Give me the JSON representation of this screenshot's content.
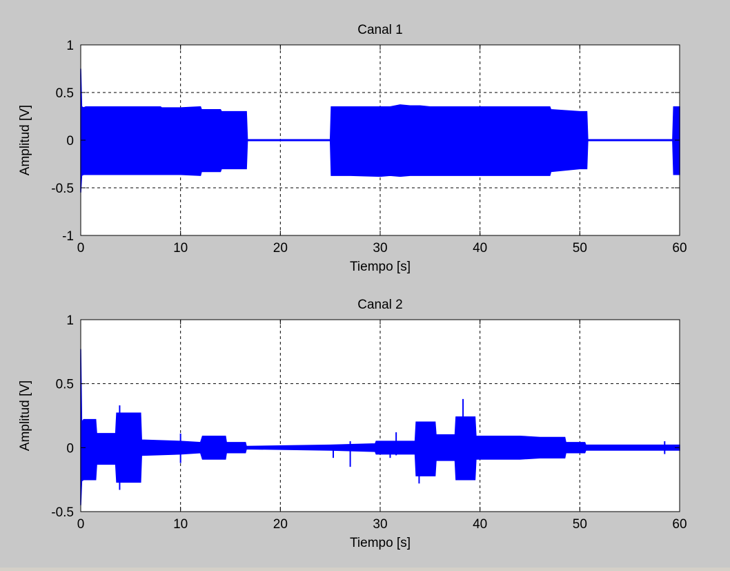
{
  "window": {
    "background": "#c8c8c8"
  },
  "chart_data": [
    {
      "type": "line",
      "title": "Canal 1",
      "xlabel": "Tiempo [s]",
      "ylabel": "Amplitud [V]",
      "xlim": [
        0,
        60
      ],
      "ylim": [
        -1,
        1
      ],
      "xticks": [
        0,
        10,
        20,
        30,
        40,
        50,
        60
      ],
      "yticks": [
        -1,
        -0.5,
        0,
        0.5,
        1
      ],
      "xtick_labels": [
        "0",
        "10",
        "20",
        "30",
        "40",
        "50",
        "60"
      ],
      "ytick_labels": [
        "-1",
        "-0.5",
        "0",
        "0.5",
        "1"
      ],
      "grid": true,
      "color": "#0000ff",
      "series": [
        {
          "envelope": {
            "x": [
              0,
              0.1,
              0.3,
              0.5,
              2,
              4,
              6,
              8,
              8.1,
              10,
              12,
              12.1,
              14,
              14.1,
              16,
              16.6,
              16.7,
              25,
              25.1,
              27,
              30,
              31,
              32,
              33,
              34,
              35,
              40,
              45,
              47,
              47.1,
              50,
              50.7,
              50.8,
              59.3,
              59.4,
              60
            ],
            "max": [
              0.75,
              0.35,
              0.34,
              0.35,
              0.35,
              0.35,
              0.35,
              0.35,
              0.34,
              0.34,
              0.35,
              0.32,
              0.32,
              0.3,
              0.3,
              0.3,
              0.005,
              0.005,
              0.35,
              0.35,
              0.35,
              0.35,
              0.37,
              0.36,
              0.36,
              0.35,
              0.35,
              0.35,
              0.35,
              0.32,
              0.3,
              0.3,
              0.005,
              0.005,
              0.35,
              0.35
            ],
            "min": [
              -0.55,
              -0.37,
              -0.36,
              -0.36,
              -0.36,
              -0.36,
              -0.36,
              -0.36,
              -0.36,
              -0.36,
              -0.37,
              -0.33,
              -0.33,
              -0.3,
              -0.3,
              -0.3,
              -0.005,
              -0.005,
              -0.37,
              -0.37,
              -0.38,
              -0.37,
              -0.38,
              -0.37,
              -0.37,
              -0.37,
              -0.37,
              -0.37,
              -0.37,
              -0.33,
              -0.3,
              -0.3,
              -0.005,
              -0.005,
              -0.36,
              -0.36
            ]
          }
        }
      ]
    },
    {
      "type": "line",
      "title": "Canal 2",
      "xlabel": "Tiempo [s]",
      "ylabel": "Amplitud [V]",
      "xlim": [
        0,
        60
      ],
      "ylim": [
        -0.5,
        1
      ],
      "xticks": [
        0,
        10,
        20,
        30,
        40,
        50,
        60
      ],
      "yticks": [
        -0.5,
        0,
        0.5,
        1
      ],
      "xtick_labels": [
        "0",
        "10",
        "20",
        "30",
        "40",
        "50",
        "60"
      ],
      "ytick_labels": [
        "-0.5",
        "0",
        "0.5",
        "1"
      ],
      "grid": true,
      "color": "#0000ff",
      "series": [
        {
          "envelope": {
            "x": [
              0,
              0.1,
              0.3,
              1.5,
              1.6,
              3.5,
              3.6,
              6,
              6.1,
              10,
              12,
              12.2,
              14.5,
              14.6,
              16.5,
              16.6,
              25,
              29.5,
              29.6,
              33.5,
              33.6,
              35.5,
              35.6,
              37.5,
              37.6,
              39.5,
              39.6,
              42,
              44,
              46,
              48.5,
              48.6,
              50.5,
              50.6,
              55,
              60
            ],
            "max": [
              0.77,
              0.2,
              0.22,
              0.22,
              0.11,
              0.11,
              0.27,
              0.27,
              0.06,
              0.05,
              0.04,
              0.09,
              0.09,
              0.04,
              0.04,
              0.01,
              0.02,
              0.03,
              0.05,
              0.05,
              0.2,
              0.2,
              0.1,
              0.1,
              0.24,
              0.24,
              0.09,
              0.09,
              0.09,
              0.08,
              0.08,
              0.04,
              0.04,
              0.02,
              0.02,
              0.02
            ],
            "min": [
              -0.45,
              -0.26,
              -0.25,
              -0.25,
              -0.13,
              -0.13,
              -0.27,
              -0.27,
              -0.06,
              -0.05,
              -0.04,
              -0.09,
              -0.09,
              -0.04,
              -0.04,
              -0.01,
              -0.02,
              -0.03,
              -0.05,
              -0.05,
              -0.22,
              -0.22,
              -0.1,
              -0.1,
              -0.25,
              -0.25,
              -0.09,
              -0.09,
              -0.09,
              -0.08,
              -0.08,
              -0.04,
              -0.04,
              -0.02,
              -0.02,
              -0.02
            ]
          },
          "spikes": [
            {
              "x": 3.9,
              "min": -0.33,
              "max": 0.33
            },
            {
              "x": 10.0,
              "min": -0.12,
              "max": 0.11
            },
            {
              "x": 25.3,
              "min": -0.08,
              "max": 0.02
            },
            {
              "x": 27.0,
              "min": -0.15,
              "max": 0.05
            },
            {
              "x": 31.0,
              "min": -0.08,
              "max": 0.03
            },
            {
              "x": 31.6,
              "min": -0.06,
              "max": 0.12
            },
            {
              "x": 33.9,
              "min": -0.28,
              "max": 0.16
            },
            {
              "x": 38.3,
              "min": -0.22,
              "max": 0.38
            },
            {
              "x": 58.5,
              "min": -0.05,
              "max": 0.05
            }
          ]
        }
      ]
    }
  ]
}
